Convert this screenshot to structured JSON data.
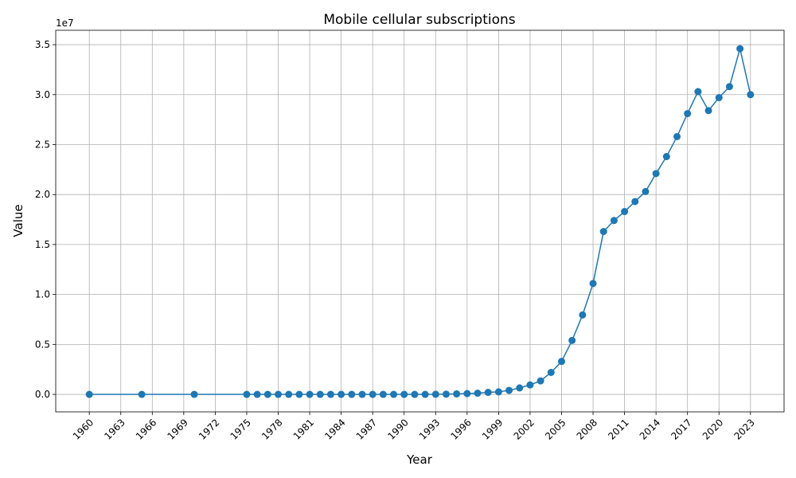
{
  "chart_data": {
    "type": "line",
    "title": "Mobile cellular subscriptions",
    "x_label": "Year",
    "y_label": "Value",
    "y_offset_label": "1e7",
    "x": [
      1960,
      1965,
      1970,
      1975,
      1976,
      1977,
      1978,
      1979,
      1980,
      1981,
      1982,
      1983,
      1984,
      1985,
      1986,
      1987,
      1988,
      1989,
      1990,
      1991,
      1992,
      1993,
      1994,
      1995,
      1996,
      1997,
      1998,
      1999,
      2000,
      2001,
      2002,
      2003,
      2004,
      2005,
      2006,
      2007,
      2008,
      2009,
      2010,
      2011,
      2012,
      2013,
      2014,
      2015,
      2016,
      2017,
      2018,
      2019,
      2020,
      2021,
      2022,
      2023
    ],
    "values": [
      0,
      0,
      0,
      0,
      0,
      0,
      0,
      0,
      0,
      0,
      0,
      0,
      0,
      0,
      0,
      0,
      0,
      0,
      0,
      0,
      0,
      10000,
      20000,
      50000,
      80000,
      120000,
      200000,
      250000,
      400000,
      650000,
      950000,
      1350000,
      2200000,
      3300000,
      5400000,
      7950000,
      11100000,
      16300000,
      17400000,
      18300000,
      19300000,
      20300000,
      22100000,
      23800000,
      25800000,
      28100000,
      30300000,
      28400000,
      29700000,
      30800000,
      34600000,
      30000000
    ],
    "color": "#1f77b4",
    "xlim": [
      1956.8,
      2026.2
    ],
    "xticks": [
      1960,
      1963,
      1966,
      1969,
      1972,
      1975,
      1978,
      1981,
      1984,
      1987,
      1990,
      1993,
      1996,
      1999,
      2002,
      2005,
      2008,
      2011,
      2014,
      2017,
      2020,
      2023
    ],
    "ylim": [
      -1750000,
      36440000
    ],
    "yticks": [
      {
        "value": 0,
        "label": "0.0"
      },
      {
        "value": 5000000,
        "label": "0.5"
      },
      {
        "value": 10000000,
        "label": "1.0"
      },
      {
        "value": 15000000,
        "label": "1.5"
      },
      {
        "value": 20000000,
        "label": "2.0"
      },
      {
        "value": 25000000,
        "label": "2.5"
      },
      {
        "value": 30000000,
        "label": "3.0"
      },
      {
        "value": 35000000,
        "label": "3.5"
      }
    ],
    "grid": true
  }
}
